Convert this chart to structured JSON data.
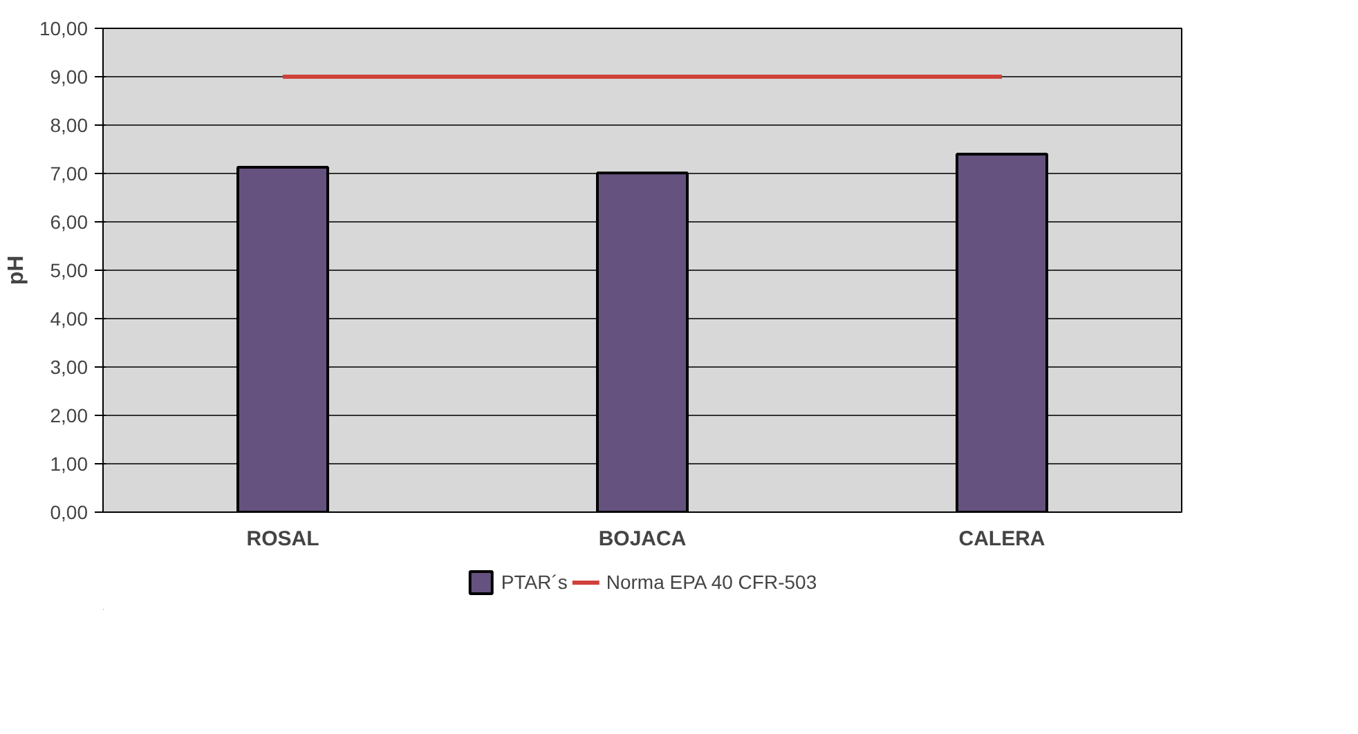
{
  "chart_data": {
    "type": "bar",
    "ylabel": "pH",
    "categories": [
      "ROSAL",
      "BOJACA",
      "CALERA"
    ],
    "series": [
      {
        "name": "PTAR´s",
        "color": "#65527f",
        "values": [
          7.13,
          7.01,
          7.4
        ]
      },
      {
        "name": "Norma EPA 40 CFR-503",
        "type": "line",
        "color": "#d0413a",
        "values": [
          9,
          9,
          9
        ]
      }
    ],
    "ylim": [
      0,
      10
    ],
    "yticks": [
      {
        "value": 0,
        "label": "0,00"
      },
      {
        "value": 1,
        "label": "1,00"
      },
      {
        "value": 2,
        "label": "2,00"
      },
      {
        "value": 3,
        "label": "3,00"
      },
      {
        "value": 4,
        "label": "4,00"
      },
      {
        "value": 5,
        "label": "5,00"
      },
      {
        "value": 6,
        "label": "6,00"
      },
      {
        "value": 7,
        "label": "7,00"
      },
      {
        "value": 8,
        "label": "8,00"
      },
      {
        "value": 9,
        "label": "9,00"
      },
      {
        "value": 10,
        "label": "10,00"
      }
    ],
    "grid": "y",
    "legend": "bottom"
  }
}
